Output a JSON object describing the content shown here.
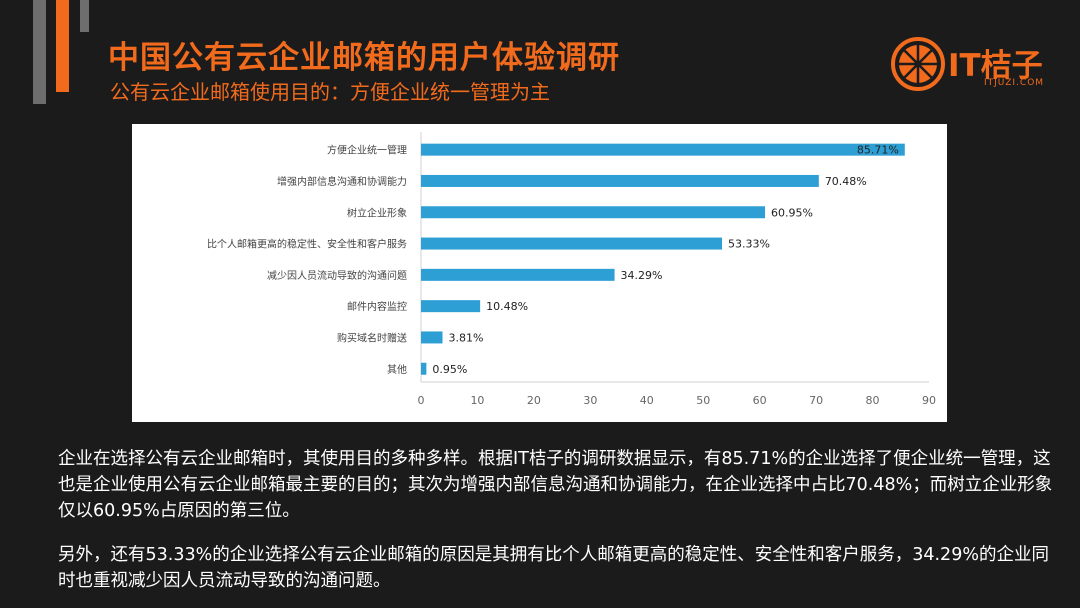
{
  "header": {
    "title": "中国公有云企业邮箱的用户体验调研",
    "subtitle": "公有云企业邮箱使用目的：方便企业统一管理为主"
  },
  "logo": {
    "text": "IT桔子",
    "sub": "ITJUZI.COM"
  },
  "colors": {
    "accent": "#f26b1d",
    "bar": "#2e9fd4",
    "background": "#1b1b1b"
  },
  "chart_data": {
    "type": "bar",
    "orientation": "horizontal",
    "categories": [
      "方便企业统一管理",
      "增强内部信息沟通和协调能力",
      "树立企业形象",
      "比个人邮箱更高的稳定性、安全性和客户服务",
      "减少因人员流动导致的沟通问题",
      "邮件内容监控",
      "购买域名时赠送",
      "其他"
    ],
    "values": [
      85.71,
      70.48,
      60.95,
      53.33,
      34.29,
      10.48,
      3.81,
      0.95
    ],
    "data_labels": [
      "85.71%",
      "70.48%",
      "60.95%",
      "53.33%",
      "34.29%",
      "10.48%",
      "3.81%",
      "0.95%"
    ],
    "xlim": [
      0,
      90
    ],
    "xticks": [
      "0",
      "10",
      "20",
      "30",
      "40",
      "50",
      "60",
      "70",
      "80",
      "90"
    ],
    "grid": false,
    "title": "",
    "xlabel": "",
    "ylabel": ""
  },
  "body": {
    "paragraph1": "企业在选择公有云企业邮箱时，其使用目的多种多样。根据IT桔子的调研数据显示，有85.71%的企业选择了便企业统一管理，这也是企业使用公有云企业邮箱最主要的目的；其次为增强内部信息沟通和协调能力，在企业选择中占比70.48%；而树立企业形象仅以60.95%占原因的第三位。",
    "paragraph2": "另外，还有53.33%的企业选择公有云企业邮箱的原因是其拥有比个人邮箱更高的稳定性、安全性和客户服务，34.29%的企业同时也重视减少因人员流动导致的沟通问题。"
  }
}
